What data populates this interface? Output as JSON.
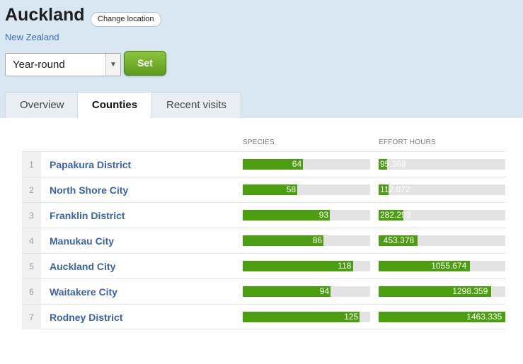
{
  "location": {
    "title": "Auckland",
    "change_label": "Change location",
    "country": "New Zealand"
  },
  "period": {
    "selected": "Year-round",
    "set_label": "Set"
  },
  "tabs": [
    {
      "label": "Overview"
    },
    {
      "label": "Counties"
    },
    {
      "label": "Recent visits"
    }
  ],
  "table": {
    "headers": {
      "species": "SPECIES",
      "effort": "EFFORT HOURS"
    },
    "species_max": 136,
    "effort_max": 1463.335,
    "rows": [
      {
        "rank": "1",
        "name": "Papakura District",
        "species": 64,
        "species_label": "64",
        "effort": 95.368,
        "effort_label": "95.368"
      },
      {
        "rank": "2",
        "name": "North Shore City",
        "species": 58,
        "species_label": "58",
        "effort": 112.072,
        "effort_label": "112.072"
      },
      {
        "rank": "3",
        "name": "Franklin District",
        "species": 93,
        "species_label": "93",
        "effort": 282.293,
        "effort_label": "282.293"
      },
      {
        "rank": "4",
        "name": "Manukau City",
        "species": 86,
        "species_label": "86",
        "effort": 453.378,
        "effort_label": "453.378"
      },
      {
        "rank": "5",
        "name": "Auckland City",
        "species": 118,
        "species_label": "118",
        "effort": 1055.674,
        "effort_label": "1055.674"
      },
      {
        "rank": "6",
        "name": "Waitakere City",
        "species": 94,
        "species_label": "94",
        "effort": 1298.359,
        "effort_label": "1298.359"
      },
      {
        "rank": "7",
        "name": "Rodney District",
        "species": 125,
        "species_label": "125",
        "effort": 1463.335,
        "effort_label": "1463.335"
      }
    ]
  },
  "colors": {
    "bar_fill": "#4b9e10",
    "bar_track": "#e3e3e3",
    "link": "#3a63a8"
  }
}
